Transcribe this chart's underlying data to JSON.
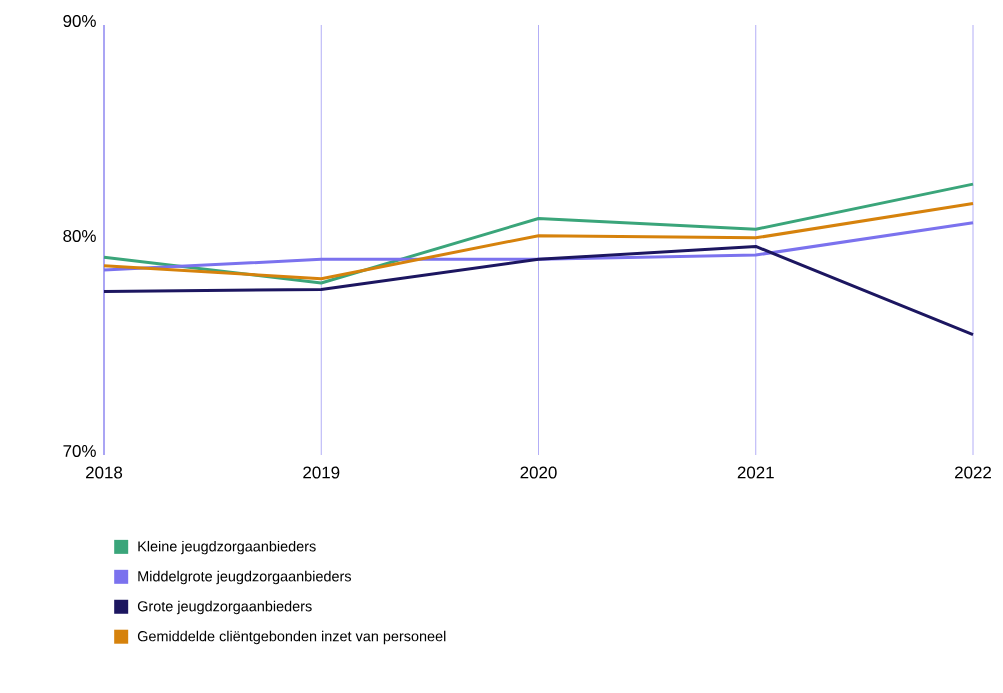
{
  "chart_data": {
    "type": "line",
    "categories": [
      "2018",
      "2019",
      "2020",
      "2021",
      "2022"
    ],
    "series": [
      {
        "name": "Kleine jeugdzorgaanbieders",
        "color": "#3aa57a",
        "values": [
          79.2,
          78.0,
          81.0,
          80.5,
          82.6
        ]
      },
      {
        "name": "Middelgrote jeugdzorgaanbieders",
        "color": "#7b72ee",
        "values": [
          78.6,
          79.1,
          79.1,
          79.3,
          80.8
        ]
      },
      {
        "name": "Grote jeugdzorgaanbieders",
        "color": "#1c1660",
        "values": [
          77.6,
          77.7,
          79.1,
          79.7,
          75.6
        ]
      },
      {
        "name": "Gemiddelde cliëntgebonden inzet van personeel",
        "color": "#d6820c",
        "values": [
          78.8,
          78.2,
          80.2,
          80.1,
          81.7
        ]
      }
    ],
    "ylim": [
      70,
      90
    ],
    "yticks": [
      {
        "value": 70,
        "label": "70%"
      },
      {
        "value": 80,
        "label": "80%"
      },
      {
        "value": 90,
        "label": "90%"
      }
    ],
    "grid": "x",
    "legend": "bottom"
  }
}
